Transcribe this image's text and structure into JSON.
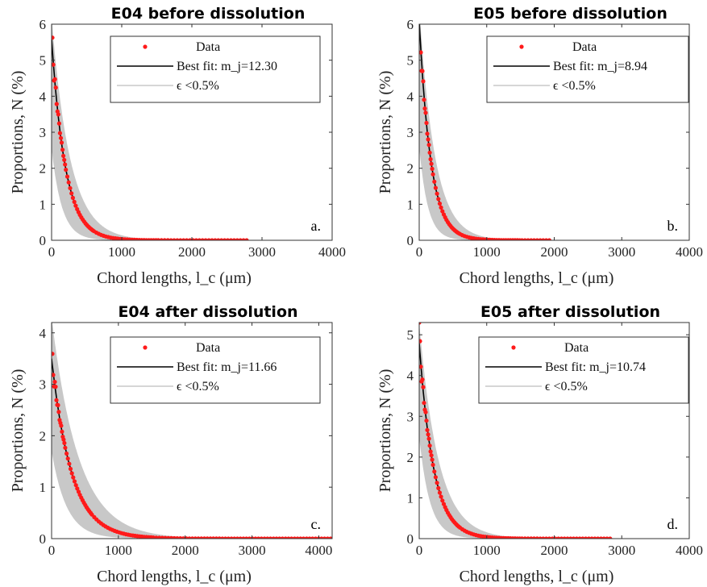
{
  "chart_data": [
    {
      "type": "scatter",
      "title": "E04 before dissolution",
      "xlabel": "Chord lengths, l_c (μm)",
      "ylabel": "Proportions, N (%)",
      "xlim": [
        0,
        4000
      ],
      "ylim": [
        0,
        6
      ],
      "xticks": [
        "0",
        "1000",
        "2000",
        "3000",
        "4000"
      ],
      "yticks": [
        "0",
        "1",
        "2",
        "3",
        "4",
        "5",
        "6"
      ],
      "panel_label": "a.",
      "mj": 12.3,
      "legend": [
        "Data",
        "Best fit:  m_j=12.30",
        "ϵ <0.5%"
      ],
      "legend_position": "top-right",
      "data_peak": 6.1,
      "fit_peak": 5.6,
      "decay_length": 195,
      "x_max": 2800,
      "band_low_peak": 2.55,
      "band_high_peak": 6.2
    },
    {
      "type": "scatter",
      "title": "E05 before dissolution",
      "xlabel": "Chord lengths, l_c (μm)",
      "ylabel": "Proportions, N (%)",
      "xlim": [
        0,
        4000
      ],
      "ylim": [
        0,
        6
      ],
      "xticks": [
        "0",
        "1000",
        "2000",
        "3000",
        "4000"
      ],
      "yticks": [
        "0",
        "1",
        "2",
        "3",
        "4",
        "5",
        "6"
      ],
      "panel_label": "b.",
      "mj": 8.94,
      "legend": [
        "Data",
        "Best fit:  m_j=8.94",
        "ϵ <0.5%"
      ],
      "legend_position": "top-right",
      "data_peak": 6.45,
      "fit_peak": 6.1,
      "decay_length": 170,
      "x_max": 1950,
      "band_low_peak": 2.6,
      "band_high_peak": 6.5
    },
    {
      "type": "scatter",
      "title": "E04 after dissolution",
      "xlabel": "Chord lengths, l_c (μm)",
      "ylabel": "Proportions, N (%)",
      "xlim": [
        0,
        4200
      ],
      "ylim": [
        0,
        4.2
      ],
      "xticks": [
        "0",
        "1000",
        "2000",
        "3000",
        "4000"
      ],
      "yticks": [
        "0",
        "1",
        "2",
        "3",
        "4"
      ],
      "panel_label": "c.",
      "mj": 11.66,
      "legend": [
        "Data",
        "Best fit:  m_j=11.66",
        "ϵ <0.5%"
      ],
      "legend_position": "top-right",
      "data_peak": 4.35,
      "fit_peak": 3.5,
      "decay_length": 300,
      "x_max": 4200,
      "band_low_peak": 1.7,
      "band_high_peak": 4.3
    },
    {
      "type": "scatter",
      "title": "E05 after dissolution",
      "xlabel": "Chord lengths, l_c (μm)",
      "ylabel": "Proportions, N (%)",
      "xlim": [
        0,
        4000
      ],
      "ylim": [
        0,
        5.3
      ],
      "xticks": [
        "0",
        "1000",
        "2000",
        "3000",
        "4000"
      ],
      "yticks": [
        "0",
        "1",
        "2",
        "3",
        "4",
        "5"
      ],
      "panel_label": "d.",
      "mj": 10.74,
      "legend": [
        "Data",
        "Best fit:  m_j=10.74",
        "ϵ <0.5%"
      ],
      "legend_position": "top-right",
      "data_peak": 5.3,
      "fit_peak": 4.8,
      "decay_length": 210,
      "x_max": 2850,
      "band_low_peak": 2.5,
      "band_high_peak": 5.3
    }
  ],
  "colors": {
    "data": "#ff1a1a",
    "fit": "#000000",
    "band": "#c8c8c8",
    "axis": "#333333"
  }
}
